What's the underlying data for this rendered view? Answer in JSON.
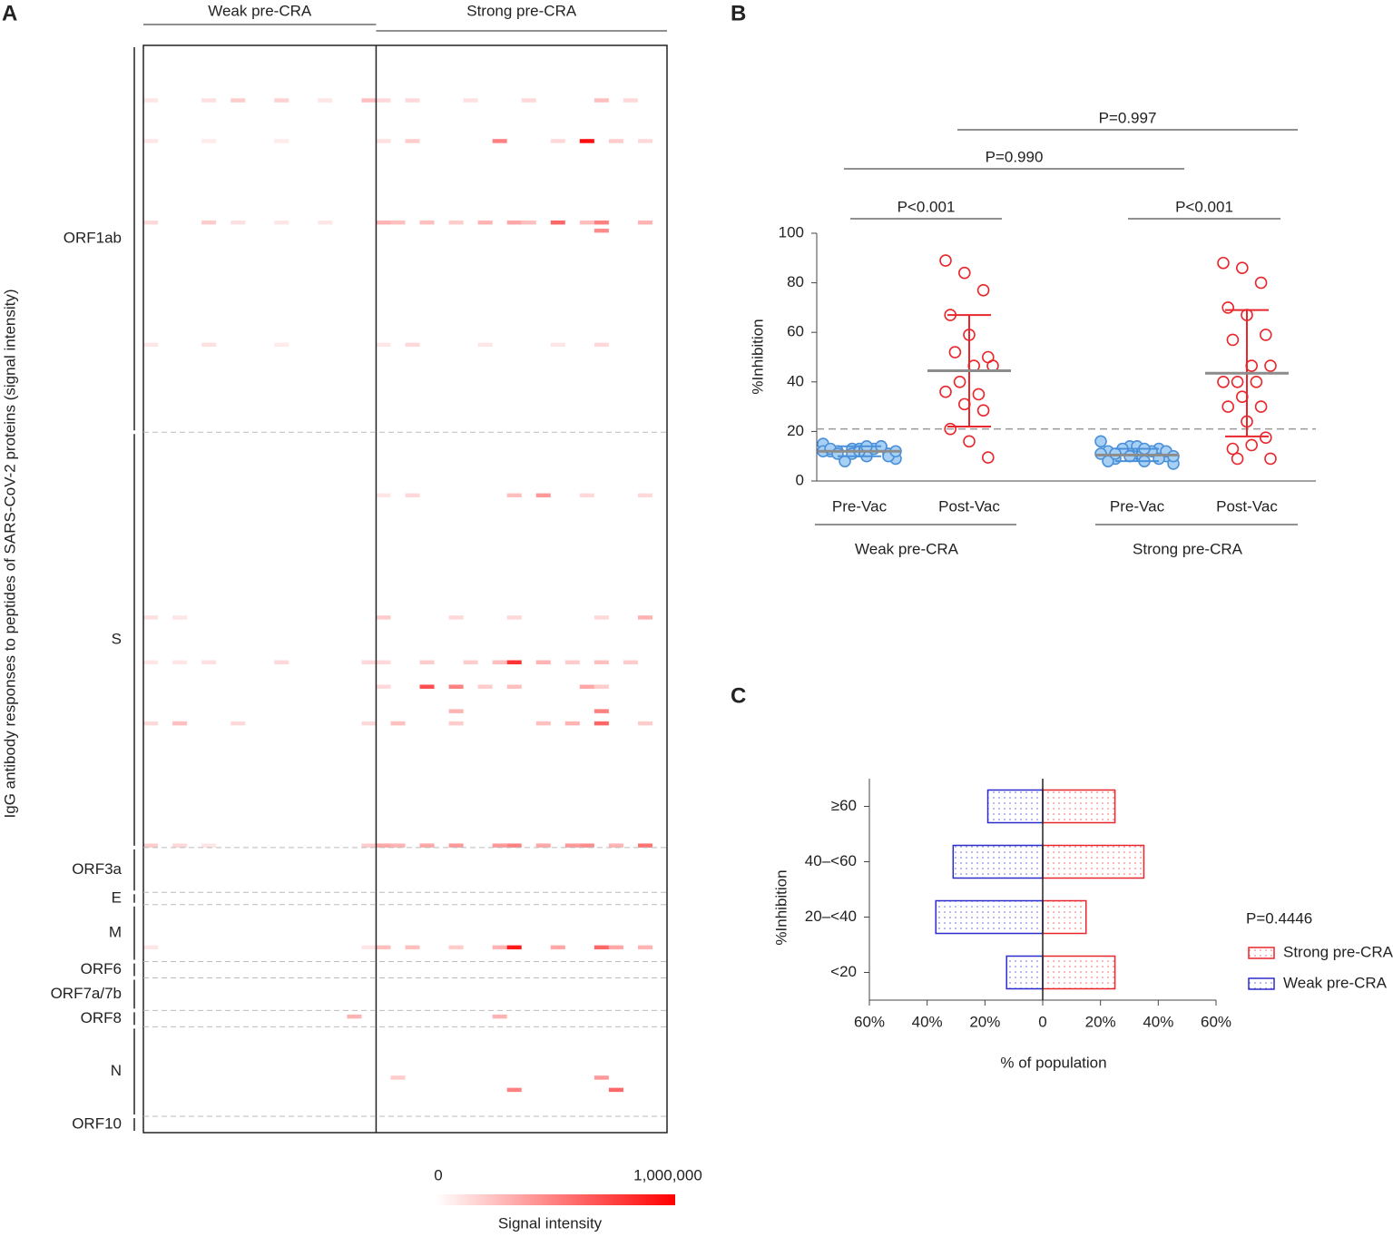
{
  "chart_data": [
    {
      "type": "heatmap",
      "panel": "A",
      "ylabel": "IgG antibody responses to peptides of SARS-CoV-2 proteins (signal intensity)",
      "groups": [
        {
          "name": "Weak pre-CRA",
          "columns": 16
        },
        {
          "name": "Strong pre-CRA",
          "columns": 20
        }
      ],
      "proteins": [
        {
          "name": "ORF1ab",
          "start": 0,
          "end": 95
        },
        {
          "name": "S",
          "start": 95,
          "end": 197
        },
        {
          "name": "ORF3a",
          "start": 197,
          "end": 208
        },
        {
          "name": "E",
          "start": 208,
          "end": 211
        },
        {
          "name": "M",
          "start": 211,
          "end": 225
        },
        {
          "name": "ORF6",
          "start": 225,
          "end": 229
        },
        {
          "name": "ORF7a/7b",
          "start": 229,
          "end": 237
        },
        {
          "name": "ORF8",
          "start": 237,
          "end": 241
        },
        {
          "name": "N",
          "start": 241,
          "end": 263
        },
        {
          "name": "ORF10",
          "start": 263,
          "end": 267
        }
      ],
      "color": "#ff0000",
      "clim": [
        0,
        1000000
      ],
      "cticks": [
        0,
        {
          "value": 1000000,
          "label": "1,000,000"
        }
      ],
      "clabel": "Signal intensity",
      "cells": [
        [
          13,
          0,
          100000
        ],
        [
          13,
          4,
          120000
        ],
        [
          13,
          6,
          200000
        ],
        [
          13,
          9,
          180000
        ],
        [
          13,
          12,
          100000
        ],
        [
          13,
          15,
          250000
        ],
        [
          13,
          16,
          150000
        ],
        [
          13,
          18,
          150000
        ],
        [
          13,
          22,
          120000
        ],
        [
          13,
          26,
          150000
        ],
        [
          13,
          31,
          250000
        ],
        [
          13,
          33,
          150000
        ],
        [
          23,
          0,
          100000
        ],
        [
          23,
          4,
          80000
        ],
        [
          23,
          9,
          80000
        ],
        [
          23,
          16,
          120000
        ],
        [
          23,
          18,
          200000
        ],
        [
          23,
          24,
          500000
        ],
        [
          23,
          28,
          150000
        ],
        [
          23,
          30,
          950000
        ],
        [
          23,
          32,
          200000
        ],
        [
          23,
          34,
          150000
        ],
        [
          43,
          0,
          150000
        ],
        [
          43,
          4,
          200000
        ],
        [
          43,
          6,
          120000
        ],
        [
          43,
          9,
          100000
        ],
        [
          43,
          12,
          100000
        ],
        [
          43,
          16,
          300000
        ],
        [
          43,
          17,
          250000
        ],
        [
          43,
          19,
          250000
        ],
        [
          43,
          21,
          200000
        ],
        [
          43,
          23,
          300000
        ],
        [
          43,
          25,
          350000
        ],
        [
          43,
          26,
          250000
        ],
        [
          43,
          28,
          600000
        ],
        [
          43,
          30,
          250000
        ],
        [
          43,
          31,
          500000
        ],
        [
          43,
          34,
          300000
        ],
        [
          45,
          31,
          450000
        ],
        [
          73,
          0,
          100000
        ],
        [
          73,
          4,
          120000
        ],
        [
          73,
          9,
          80000
        ],
        [
          73,
          16,
          100000
        ],
        [
          73,
          18,
          150000
        ],
        [
          73,
          23,
          100000
        ],
        [
          73,
          28,
          100000
        ],
        [
          73,
          31,
          150000
        ],
        [
          110,
          16,
          100000
        ],
        [
          110,
          18,
          150000
        ],
        [
          110,
          25,
          250000
        ],
        [
          110,
          27,
          400000
        ],
        [
          110,
          30,
          150000
        ],
        [
          110,
          34,
          150000
        ],
        [
          140,
          0,
          120000
        ],
        [
          140,
          2,
          100000
        ],
        [
          140,
          16,
          200000
        ],
        [
          140,
          21,
          150000
        ],
        [
          140,
          25,
          150000
        ],
        [
          140,
          31,
          150000
        ],
        [
          140,
          34,
          300000
        ],
        [
          151,
          0,
          100000
        ],
        [
          151,
          2,
          100000
        ],
        [
          151,
          4,
          120000
        ],
        [
          151,
          9,
          150000
        ],
        [
          151,
          15,
          150000
        ],
        [
          151,
          16,
          150000
        ],
        [
          151,
          19,
          200000
        ],
        [
          151,
          22,
          200000
        ],
        [
          151,
          24,
          250000
        ],
        [
          151,
          25,
          800000
        ],
        [
          151,
          27,
          300000
        ],
        [
          151,
          29,
          200000
        ],
        [
          151,
          31,
          250000
        ],
        [
          151,
          33,
          200000
        ],
        [
          157,
          16,
          150000
        ],
        [
          157,
          19,
          700000
        ],
        [
          157,
          21,
          500000
        ],
        [
          157,
          23,
          200000
        ],
        [
          157,
          25,
          250000
        ],
        [
          157,
          30,
          350000
        ],
        [
          157,
          31,
          200000
        ],
        [
          163,
          21,
          300000
        ],
        [
          163,
          31,
          500000
        ],
        [
          166,
          0,
          150000
        ],
        [
          166,
          2,
          250000
        ],
        [
          166,
          6,
          150000
        ],
        [
          166,
          15,
          150000
        ],
        [
          166,
          17,
          250000
        ],
        [
          166,
          21,
          200000
        ],
        [
          166,
          27,
          250000
        ],
        [
          166,
          29,
          300000
        ],
        [
          166,
          31,
          600000
        ],
        [
          166,
          34,
          200000
        ],
        [
          196,
          0,
          200000
        ],
        [
          196,
          2,
          150000
        ],
        [
          196,
          4,
          100000
        ],
        [
          196,
          15,
          200000
        ],
        [
          196,
          16,
          350000
        ],
        [
          196,
          17,
          300000
        ],
        [
          196,
          19,
          350000
        ],
        [
          196,
          21,
          400000
        ],
        [
          196,
          24,
          400000
        ],
        [
          196,
          25,
          500000
        ],
        [
          196,
          27,
          350000
        ],
        [
          196,
          29,
          400000
        ],
        [
          196,
          30,
          450000
        ],
        [
          196,
          32,
          300000
        ],
        [
          196,
          34,
          550000
        ],
        [
          221,
          0,
          100000
        ],
        [
          221,
          15,
          100000
        ],
        [
          221,
          16,
          250000
        ],
        [
          221,
          18,
          250000
        ],
        [
          221,
          21,
          200000
        ],
        [
          221,
          24,
          300000
        ],
        [
          221,
          25,
          900000
        ],
        [
          221,
          28,
          350000
        ],
        [
          221,
          31,
          600000
        ],
        [
          221,
          32,
          350000
        ],
        [
          221,
          34,
          300000
        ],
        [
          238,
          14,
          300000
        ],
        [
          238,
          24,
          300000
        ],
        [
          253,
          17,
          200000
        ],
        [
          253,
          31,
          400000
        ],
        [
          256,
          25,
          500000
        ],
        [
          256,
          32,
          600000
        ]
      ]
    },
    {
      "type": "dot",
      "panel": "B",
      "ylabel": "%Inhibition",
      "ylim": [
        0,
        100
      ],
      "yticks": [
        0,
        20,
        40,
        60,
        80,
        100
      ],
      "threshold": 21,
      "cohorts": [
        {
          "name": "Weak pre-CRA",
          "groups": [
            {
              "name": "Pre-Vac",
              "color": "#4a90d9",
              "fill": "#a8d0f5",
              "mean": 12,
              "range": [
                10,
                14
              ],
              "values": [
                15,
                13,
                14,
                12,
                13,
                11,
                12,
                10,
                9,
                8,
                13,
                12,
                11,
                14,
                13,
                12,
                10,
                11,
                14,
                12
              ]
            },
            {
              "name": "Post-Vac",
              "color": "#e8262b",
              "fill": "none",
              "mean": 44.5,
              "range": [
                22,
                67
              ],
              "values": [
                89,
                84,
                77,
                67,
                59,
                50,
                52,
                46.5,
                46.5,
                40,
                35,
                36,
                31,
                28.5,
                21,
                16,
                9.5
              ]
            }
          ]
        },
        {
          "name": "Strong pre-CRA",
          "groups": [
            {
              "name": "Pre-Vac",
              "color": "#4a90d9",
              "fill": "#a8d0f5",
              "mean": 10.5,
              "range": [
                8,
                13
              ],
              "values": [
                16,
                14,
                13,
                12,
                11,
                10,
                9,
                8,
                7,
                13,
                12,
                11,
                10,
                9,
                8,
                14,
                12,
                11,
                13,
                10
              ]
            },
            {
              "name": "Post-Vac",
              "color": "#e8262b",
              "fill": "none",
              "mean": 43.5,
              "range": [
                18,
                69
              ],
              "values": [
                88,
                86,
                80,
                70,
                67,
                59,
                57,
                46.5,
                46.5,
                40,
                40,
                40,
                34,
                30,
                30,
                24,
                17.5,
                13,
                14.5,
                9,
                9
              ]
            }
          ]
        }
      ],
      "comparisons": [
        "P<0.001",
        "P<0.001",
        "P=0.990",
        "P=0.997"
      ]
    },
    {
      "type": "hbar",
      "panel": "C",
      "ylabel": "%Inhibition",
      "xlabel": "% of population",
      "categories": [
        "<20",
        "20–<40",
        "40–<60",
        "≥60"
      ],
      "series": [
        {
          "name": "Strong pre-CRA",
          "color": "#e8262b",
          "values": [
            25,
            15,
            35,
            25
          ]
        },
        {
          "name": "Weak pre-CRA",
          "color": "#2b2bcc",
          "values": [
            -12.5,
            -37,
            -31,
            -19
          ]
        }
      ],
      "xlim": [
        -60,
        60
      ],
      "xticks": [
        {
          "value": -60,
          "label": "60%"
        },
        {
          "value": -40,
          "label": "40%"
        },
        {
          "value": -20,
          "label": "20%"
        },
        0,
        {
          "value": 20,
          "label": "20%"
        },
        {
          "value": 40,
          "label": "40%"
        },
        {
          "value": 60,
          "label": "60%"
        }
      ],
      "annotation": "P=0.4446",
      "legend": "right"
    }
  ]
}
